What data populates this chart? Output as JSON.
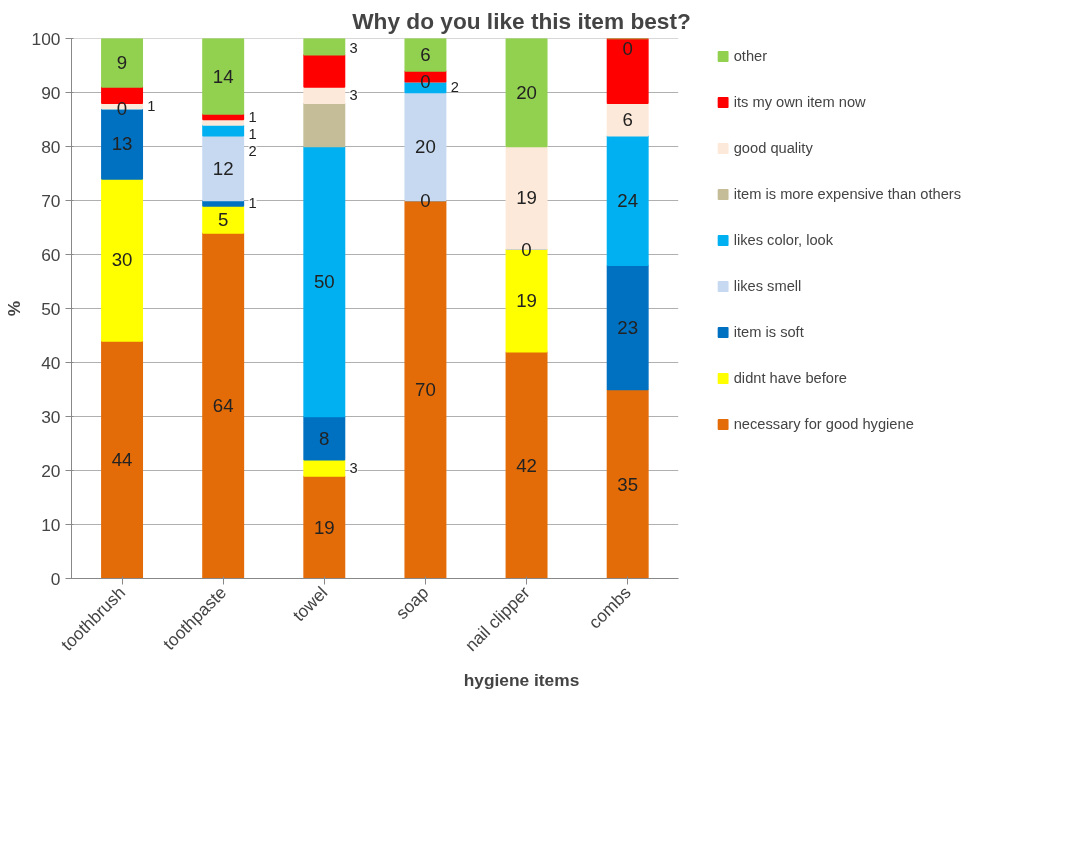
{
  "chart_data": {
    "type": "bar",
    "stacked": true,
    "title": "Why do you like this item best?",
    "xlabel": "hygiene items",
    "ylabel": "%",
    "categories": [
      "toothbrush",
      "toothpaste",
      "towel",
      "soap",
      "nail clipper",
      "combs"
    ],
    "ylim": [
      0,
      100
    ],
    "yticks": [
      0,
      10,
      20,
      30,
      40,
      50,
      60,
      70,
      80,
      90,
      100
    ],
    "grid": "y",
    "legend": "right",
    "series": [
      {
        "name": "necessary for good hygiene",
        "color": "#e36c09",
        "values": [
          44,
          64,
          19,
          70,
          42,
          35
        ],
        "value_labels": [
          "44",
          "64",
          "19",
          "70",
          "42",
          "35"
        ]
      },
      {
        "name": "didnt have before",
        "color": "#ffff00",
        "values": [
          30,
          5,
          3,
          null,
          19,
          null
        ],
        "value_labels": [
          "30",
          "5",
          "3",
          null,
          "19",
          null
        ]
      },
      {
        "name": "item is soft",
        "color": "#0070c0",
        "values": [
          13,
          1,
          8,
          0,
          0,
          23
        ],
        "value_labels": [
          "13",
          "1",
          "8",
          "0",
          "0",
          "23"
        ]
      },
      {
        "name": "likes smell",
        "color": "#c6d9f1",
        "values": [
          null,
          12,
          null,
          20,
          null,
          null
        ],
        "value_labels": [
          null,
          "12",
          null,
          "20",
          null,
          null
        ]
      },
      {
        "name": "likes color, look",
        "color": "#00b0f0",
        "values": [
          0,
          2,
          50,
          2,
          null,
          24
        ],
        "value_labels": [
          "0",
          "2",
          "50",
          "2",
          null,
          "24"
        ]
      },
      {
        "name": "item is more expensive than others",
        "color": "#c4bd97",
        "values": [
          null,
          null,
          8,
          null,
          null,
          null
        ],
        "value_labels": [
          null,
          null,
          null,
          null,
          null,
          null
        ]
      },
      {
        "name": "good quality",
        "color": "#fde9d9",
        "values": [
          1,
          1,
          3,
          0,
          19,
          6
        ],
        "value_labels": [
          "1",
          "1",
          "3",
          "0",
          "19",
          "6"
        ]
      },
      {
        "name": "its my own item now",
        "color": "#ff0000",
        "values": [
          3,
          1,
          6,
          2,
          null,
          12
        ],
        "value_labels": [
          null,
          "1",
          null,
          null,
          null,
          null
        ]
      },
      {
        "name": "other",
        "color": "#92d050",
        "values": [
          9,
          14,
          3,
          6,
          20,
          0
        ],
        "value_labels": [
          "9",
          "14",
          "3",
          "6",
          "20",
          "0"
        ]
      }
    ]
  }
}
